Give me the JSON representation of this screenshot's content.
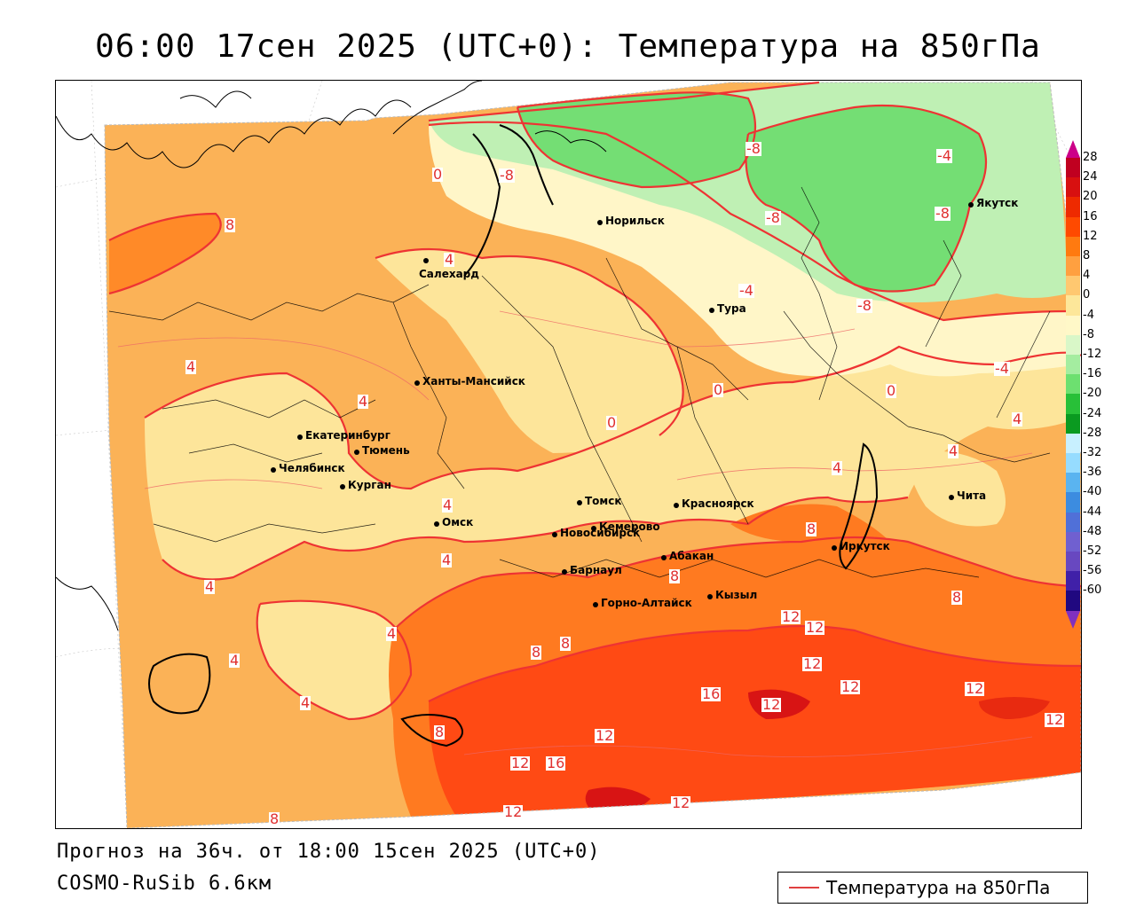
{
  "header": {
    "title": "06:00 17сен 2025 (UTC+0): Температура на 850гПа"
  },
  "footer": {
    "forecast": "Прогноз на 36ч. от 18:00 15сен 2025 (UTC+0)",
    "model": "COSMO-RuSib 6.6км"
  },
  "legend": {
    "label": "Температура на 850гПа",
    "line_color": "#e04040"
  },
  "colorbar": {
    "levels": [
      "28",
      "24",
      "20",
      "16",
      "12",
      "8",
      "4",
      "0",
      "-4",
      "-8",
      "-12",
      "-16",
      "-20",
      "-24",
      "-28",
      "-32",
      "-36",
      "-40",
      "-44",
      "-48",
      "-52",
      "-56",
      "-60"
    ],
    "colors": [
      "#c00020",
      "#d81010",
      "#ee2a00",
      "#ff4a00",
      "#ff7a10",
      "#ffa040",
      "#ffc870",
      "#fde79a",
      "#fff8c8",
      "#d9f7c8",
      "#a4eda0",
      "#6de070",
      "#28c038",
      "#0a9a20",
      "#c8f0ff",
      "#96dcff",
      "#5ab4f0",
      "#3c8ce0",
      "#5070d8",
      "#7060d0",
      "#6848c0",
      "#4020a8",
      "#200880"
    ],
    "top_color": "#cc0088",
    "bottom_color": "#8030c0"
  },
  "cities": [
    {
      "name": "Норильск"
    },
    {
      "name": "Якутск"
    },
    {
      "name": "Салехард"
    },
    {
      "name": "Тура"
    },
    {
      "name": "Ханты-Мансийск"
    },
    {
      "name": "Екатеринбург"
    },
    {
      "name": "Тюмень"
    },
    {
      "name": "Челябинск"
    },
    {
      "name": "Курган"
    },
    {
      "name": "Томск"
    },
    {
      "name": "Красноярск"
    },
    {
      "name": "Омск"
    },
    {
      "name": "Новосибирск"
    },
    {
      "name": "Кемерово"
    },
    {
      "name": "Абакан"
    },
    {
      "name": "Иркутск"
    },
    {
      "name": "Чита"
    },
    {
      "name": "Барнаул"
    },
    {
      "name": "Горно-Алтайск"
    },
    {
      "name": "Кызыл"
    }
  ],
  "isolines": {
    "labels": [
      "0",
      "-8",
      "-8",
      "-4",
      "-8",
      "-8",
      "8",
      "4",
      "-4",
      "-8",
      "4",
      "4",
      "0",
      "0",
      "0",
      "-4",
      "4",
      "4",
      "4",
      "4",
      "4",
      "4",
      "8",
      "4",
      "8",
      "4",
      "4",
      "8",
      "8",
      "8",
      "12",
      "12",
      "12",
      "12",
      "16",
      "12",
      "12",
      "12",
      "12",
      "12",
      "16",
      "12",
      "8",
      "12",
      "8"
    ]
  }
}
